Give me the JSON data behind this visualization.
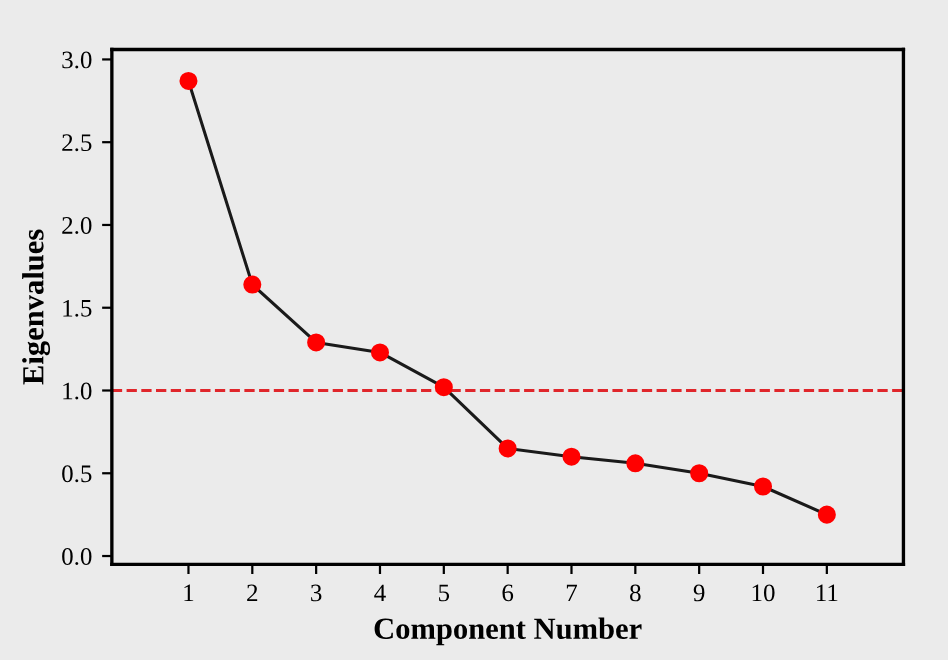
{
  "chart_data": {
    "type": "line",
    "xlabel": "Component Number",
    "ylabel": "Eigenvalues",
    "x": [
      1,
      2,
      3,
      4,
      5,
      6,
      7,
      8,
      9,
      10,
      11
    ],
    "series": [
      {
        "color": "#ff0000",
        "values": [
          2.87,
          1.64,
          1.29,
          1.23,
          1.02,
          0.65,
          0.6,
          0.56,
          0.5,
          0.42,
          0.25
        ]
      }
    ],
    "xlim": [
      -0.2,
      12.2
    ],
    "xticks": [
      1,
      2,
      3,
      4,
      5,
      6,
      7,
      8,
      9,
      10,
      11
    ],
    "ylim": [
      -0.05,
      3.06
    ],
    "yticks": [
      {
        "value": 0,
        "label": "0.0"
      },
      {
        "value": 0.5,
        "label": "0.5"
      },
      {
        "value": 1,
        "label": "1.0"
      },
      {
        "value": 1.5,
        "label": "1.5"
      },
      {
        "value": 2,
        "label": "2.0"
      },
      {
        "value": 2.5,
        "label": "2.5"
      },
      {
        "value": 3,
        "label": "3.0"
      }
    ],
    "ref_lines": [
      {
        "axis": "y",
        "value": 1.0,
        "color": "#e0262b",
        "line_style": "dashed"
      }
    ],
    "marker": "circle",
    "line_style": "solid",
    "grid": false,
    "legend": false
  }
}
